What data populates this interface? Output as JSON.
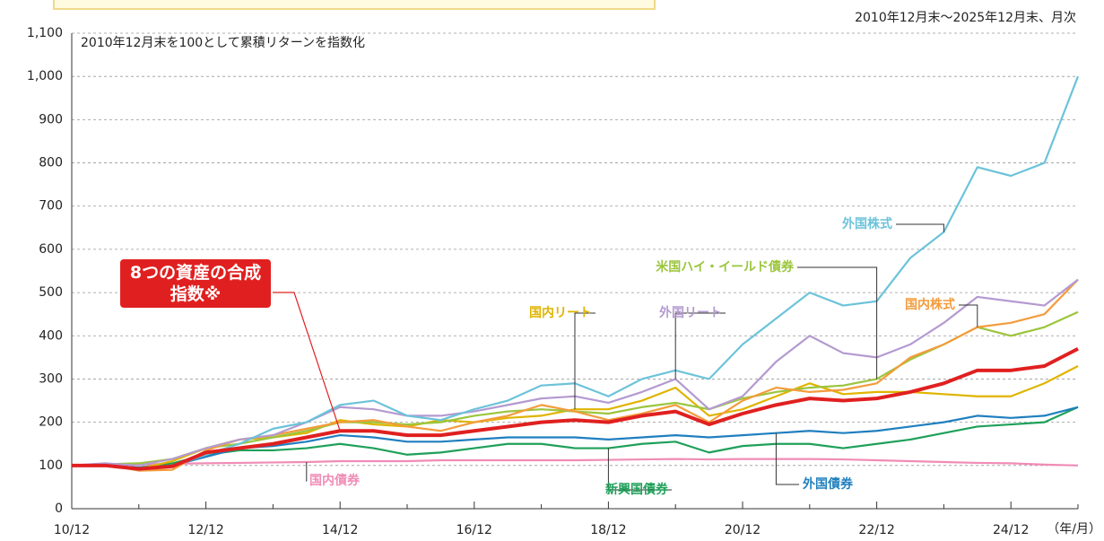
{
  "chart_data": {
    "type": "line",
    "annotations": [
      "2010年12月末を100として累積リターンを指数化",
      "2010年12月末～2025年12月末、月次",
      "（年/月）"
    ],
    "categories": [
      "10/12",
      null,
      null,
      null,
      "12/12",
      null,
      null,
      null,
      "14/12",
      null,
      null,
      null,
      "16/12",
      null,
      null,
      null,
      "18/12",
      null,
      null,
      null,
      "20/12",
      null,
      null,
      null,
      "22/12",
      null,
      null,
      null,
      "24/12",
      null,
      null
    ],
    "series": [
      {
        "name": "外国株式",
        "color": "#6cc3d9",
        "values": [
          100,
          102,
          90,
          98,
          125,
          150,
          185,
          200,
          240,
          250,
          215,
          205,
          230,
          250,
          285,
          290,
          260,
          300,
          320,
          300,
          380,
          440,
          500,
          470,
          480,
          580,
          640,
          790,
          770,
          800,
          1000
        ]
      },
      {
        "name": "国内株式",
        "color": "#f39c3c",
        "values": [
          100,
          102,
          88,
          90,
          135,
          160,
          170,
          185,
          200,
          205,
          190,
          180,
          200,
          215,
          240,
          225,
          205,
          220,
          240,
          200,
          250,
          280,
          270,
          275,
          290,
          350,
          380,
          420,
          430,
          450,
          530
        ]
      },
      {
        "name": "米国ハイ・イールド債券",
        "color": "#9bc53d",
        "values": [
          100,
          103,
          105,
          115,
          140,
          150,
          165,
          180,
          200,
          200,
          195,
          200,
          215,
          225,
          230,
          225,
          220,
          235,
          245,
          230,
          255,
          270,
          280,
          285,
          300,
          345,
          380,
          420,
          400,
          420,
          455
        ]
      },
      {
        "name": "国内リート",
        "color": "#e0b400",
        "values": [
          100,
          100,
          92,
          110,
          140,
          160,
          165,
          175,
          205,
          195,
          190,
          205,
          200,
          210,
          215,
          230,
          230,
          250,
          280,
          215,
          230,
          260,
          290,
          265,
          270,
          270,
          265,
          260,
          260,
          290,
          330
        ]
      },
      {
        "name": "外国リート",
        "color": "#b49ad0",
        "values": [
          100,
          105,
          100,
          115,
          140,
          160,
          170,
          200,
          235,
          230,
          215,
          215,
          225,
          240,
          255,
          260,
          245,
          270,
          300,
          230,
          260,
          340,
          400,
          360,
          350,
          380,
          430,
          490,
          480,
          470,
          530
        ]
      },
      {
        "name": "8つの資産の合成指数※",
        "color": "#e02020",
        "values": [
          100,
          100,
          92,
          98,
          130,
          140,
          150,
          165,
          180,
          180,
          170,
          170,
          180,
          190,
          200,
          205,
          200,
          215,
          225,
          195,
          220,
          240,
          255,
          250,
          255,
          270,
          290,
          320,
          320,
          330,
          370
        ]
      },
      {
        "name": "外国債券",
        "color": "#1f7fbf",
        "values": [
          100,
          100,
          95,
          100,
          120,
          140,
          145,
          155,
          170,
          165,
          155,
          155,
          160,
          165,
          165,
          165,
          160,
          165,
          170,
          165,
          170,
          175,
          180,
          175,
          180,
          190,
          200,
          215,
          210,
          215,
          235
        ]
      },
      {
        "name": "新興国債券",
        "color": "#1fa05a",
        "values": [
          100,
          100,
          95,
          105,
          125,
          135,
          135,
          140,
          150,
          140,
          125,
          130,
          140,
          150,
          150,
          140,
          140,
          150,
          155,
          130,
          145,
          150,
          150,
          140,
          150,
          160,
          175,
          190,
          195,
          200,
          235
        ]
      },
      {
        "name": "国内債券",
        "color": "#f08cb6",
        "values": [
          100,
          101,
          102,
          104,
          105,
          106,
          107,
          108,
          110,
          110,
          110,
          112,
          112,
          112,
          112,
          112,
          113,
          114,
          115,
          114,
          115,
          115,
          115,
          114,
          112,
          110,
          108,
          106,
          105,
          102,
          100
        ]
      }
    ],
    "ylim": [
      0,
      1100
    ],
    "yticks": [
      0,
      100,
      200,
      300,
      400,
      500,
      600,
      700,
      800,
      900,
      {
        "value": 1000,
        "label": "1,000"
      },
      {
        "value": 1100,
        "label": "1,100"
      }
    ],
    "grid": true
  }
}
